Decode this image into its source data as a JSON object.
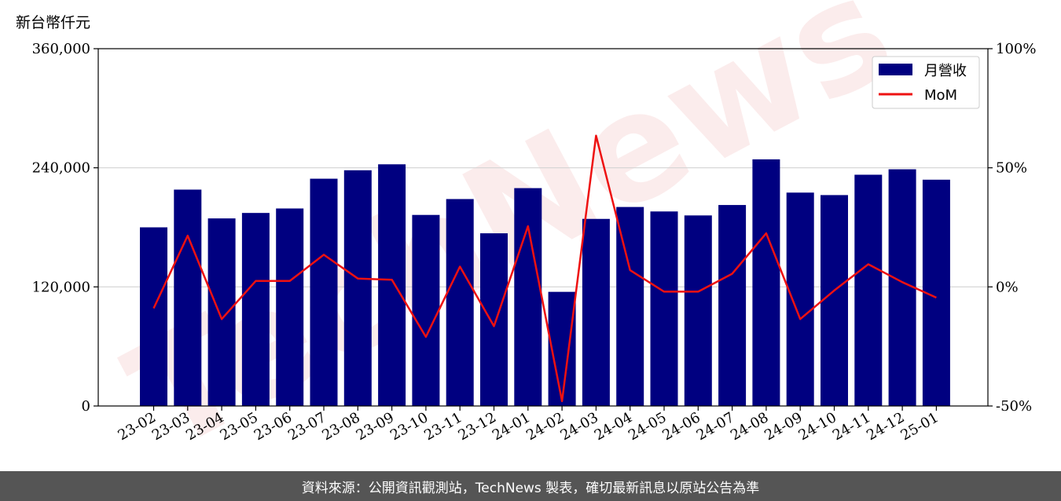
{
  "unit_label": "新台幣仟元",
  "footer_text": "資料來源：公開資訊觀測站，TechNews 製表，確切最新訊息以原站公告為準",
  "watermark_text": "TechNews",
  "colors": {
    "bar": "#000080",
    "line": "#ee1111",
    "grid": "#d3d3d3",
    "footer_bg": "#555555",
    "watermark": "#f3c9c9"
  },
  "chart_data": {
    "type": "bar",
    "categories": [
      "23-02",
      "23-03",
      "23-04",
      "23-05",
      "23-06",
      "23-07",
      "23-08",
      "23-09",
      "23-10",
      "23-11",
      "23-12",
      "24-01",
      "24-02",
      "24-03",
      "24-04",
      "24-05",
      "24-06",
      "24-07",
      "24-08",
      "24-09",
      "24-10",
      "24-11",
      "24-12",
      "25-01"
    ],
    "series": [
      {
        "name": "月營收",
        "type": "bar",
        "axis": "left",
        "values": [
          180000,
          218000,
          189000,
          194500,
          199000,
          229000,
          237500,
          243500,
          192500,
          208500,
          174000,
          219500,
          115000,
          188500,
          200500,
          196000,
          192000,
          202500,
          248500,
          215000,
          212500,
          233000,
          238500,
          228000
        ]
      },
      {
        "name": "MoM",
        "type": "line",
        "axis": "right",
        "unit": "%",
        "values": [
          -9,
          21.5,
          -13.5,
          2.5,
          2.5,
          13.5,
          3.5,
          3,
          -21,
          8.5,
          -16.5,
          25.5,
          -48,
          63.5,
          7,
          -2,
          -2,
          5.5,
          22.5,
          -13.5,
          -1.5,
          9.5,
          2,
          -4.5
        ]
      }
    ],
    "y_left": {
      "lim": [
        0,
        360000
      ],
      "ticks": [
        0,
        120000,
        240000,
        360000
      ],
      "tick_labels": [
        "0",
        "120,000",
        "240,000",
        "360,000"
      ]
    },
    "y_right": {
      "lim": [
        -50,
        100
      ],
      "ticks": [
        -50,
        0,
        50,
        100
      ],
      "tick_labels": [
        "-50%",
        "0%",
        "50%",
        "100%"
      ]
    },
    "grid": "horizontal",
    "legend_position": "top-right"
  }
}
